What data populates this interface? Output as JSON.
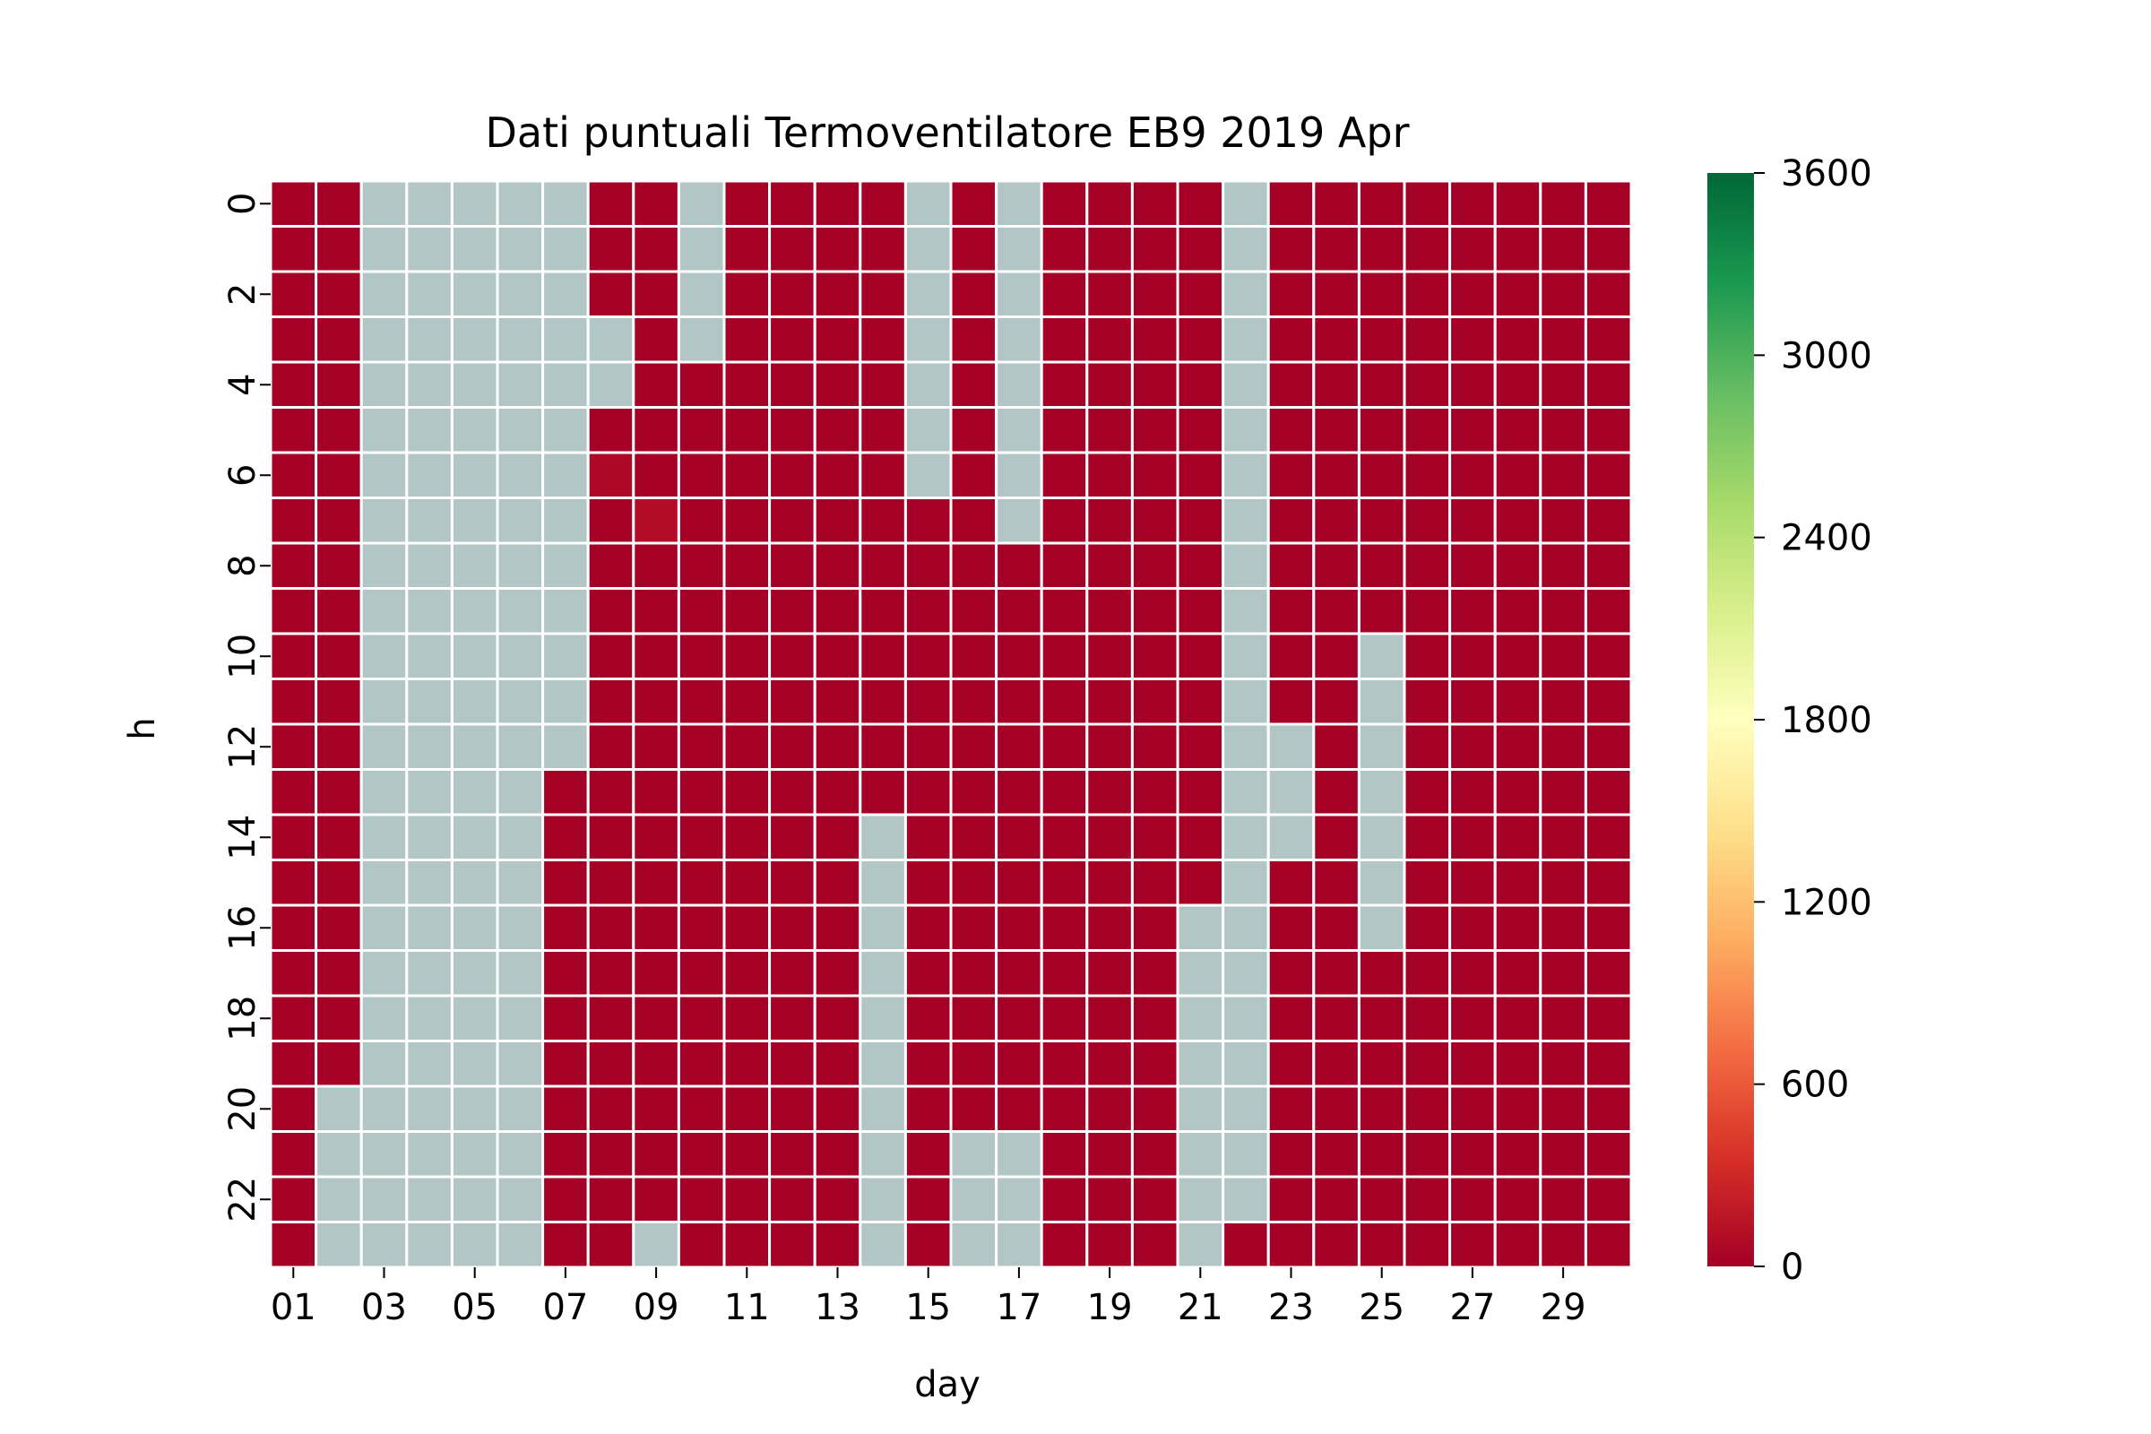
{
  "chart_data": {
    "type": "heatmap",
    "title": "Dati puntuali Termoventilatore EB9 2019 Apr",
    "xlabel": "day",
    "ylabel": "h",
    "x_categories": [
      "01",
      "02",
      "03",
      "04",
      "05",
      "06",
      "07",
      "08",
      "09",
      "10",
      "11",
      "12",
      "13",
      "14",
      "15",
      "16",
      "17",
      "18",
      "19",
      "20",
      "21",
      "22",
      "23",
      "24",
      "25",
      "26",
      "27",
      "28",
      "29",
      "30"
    ],
    "x_tick_labels": [
      "01",
      "03",
      "05",
      "07",
      "09",
      "11",
      "13",
      "15",
      "17",
      "19",
      "21",
      "23",
      "25",
      "27",
      "29"
    ],
    "y_categories": [
      "0",
      "1",
      "2",
      "3",
      "4",
      "5",
      "6",
      "7",
      "8",
      "9",
      "10",
      "11",
      "12",
      "13",
      "14",
      "15",
      "16",
      "17",
      "18",
      "19",
      "20",
      "21",
      "22",
      "23"
    ],
    "y_tick_labels": [
      "0",
      "2",
      "4",
      "6",
      "8",
      "10",
      "12",
      "14",
      "16",
      "18",
      "20",
      "22"
    ],
    "missing_color": "#b3c6c6",
    "missing_description": "cells with no data",
    "missing_ranges": [
      {
        "day": "02",
        "hours": [
          20,
          23
        ]
      },
      {
        "day": "03",
        "hours": [
          0,
          23
        ]
      },
      {
        "day": "04",
        "hours": [
          0,
          23
        ]
      },
      {
        "day": "05",
        "hours": [
          0,
          23
        ]
      },
      {
        "day": "06",
        "hours": [
          0,
          23
        ]
      },
      {
        "day": "07",
        "hours": [
          0,
          12
        ]
      },
      {
        "day": "08",
        "hours": [
          3,
          4
        ]
      },
      {
        "day": "09",
        "hours": [
          23,
          23
        ]
      },
      {
        "day": "10",
        "hours": [
          0,
          3
        ]
      },
      {
        "day": "14",
        "hours": [
          14,
          23
        ]
      },
      {
        "day": "15",
        "hours": [
          0,
          6
        ]
      },
      {
        "day": "16",
        "hours": [
          21,
          23
        ]
      },
      {
        "day": "17",
        "hours": [
          0,
          7
        ]
      },
      {
        "day": "17",
        "hours": [
          21,
          23
        ]
      },
      {
        "day": "21",
        "hours": [
          16,
          23
        ]
      },
      {
        "day": "22",
        "hours": [
          0,
          22
        ]
      },
      {
        "day": "23",
        "hours": [
          12,
          14
        ]
      },
      {
        "day": "25",
        "hours": [
          10,
          16
        ]
      }
    ],
    "default_value": 0,
    "value_exceptions": [
      {
        "day": "08",
        "hour": 6,
        "value": 60
      },
      {
        "day": "09",
        "hour": 7,
        "value": 90
      }
    ],
    "colorbar": {
      "vmin": 0,
      "vmax": 3600,
      "ticks": [
        0,
        600,
        1200,
        1800,
        2400,
        3000,
        3600
      ],
      "tick_labels": [
        "0",
        "600",
        "1200",
        "1800",
        "2400",
        "3000",
        "3600"
      ],
      "colormap": "RdYlGn",
      "colors": [
        "#a50026",
        "#d73027",
        "#f46d43",
        "#fdae61",
        "#fee08b",
        "#ffffbf",
        "#d9ef8b",
        "#a6d96a",
        "#66bd63",
        "#1a9850",
        "#006837"
      ]
    },
    "grid_line_color": "#ffffff"
  }
}
